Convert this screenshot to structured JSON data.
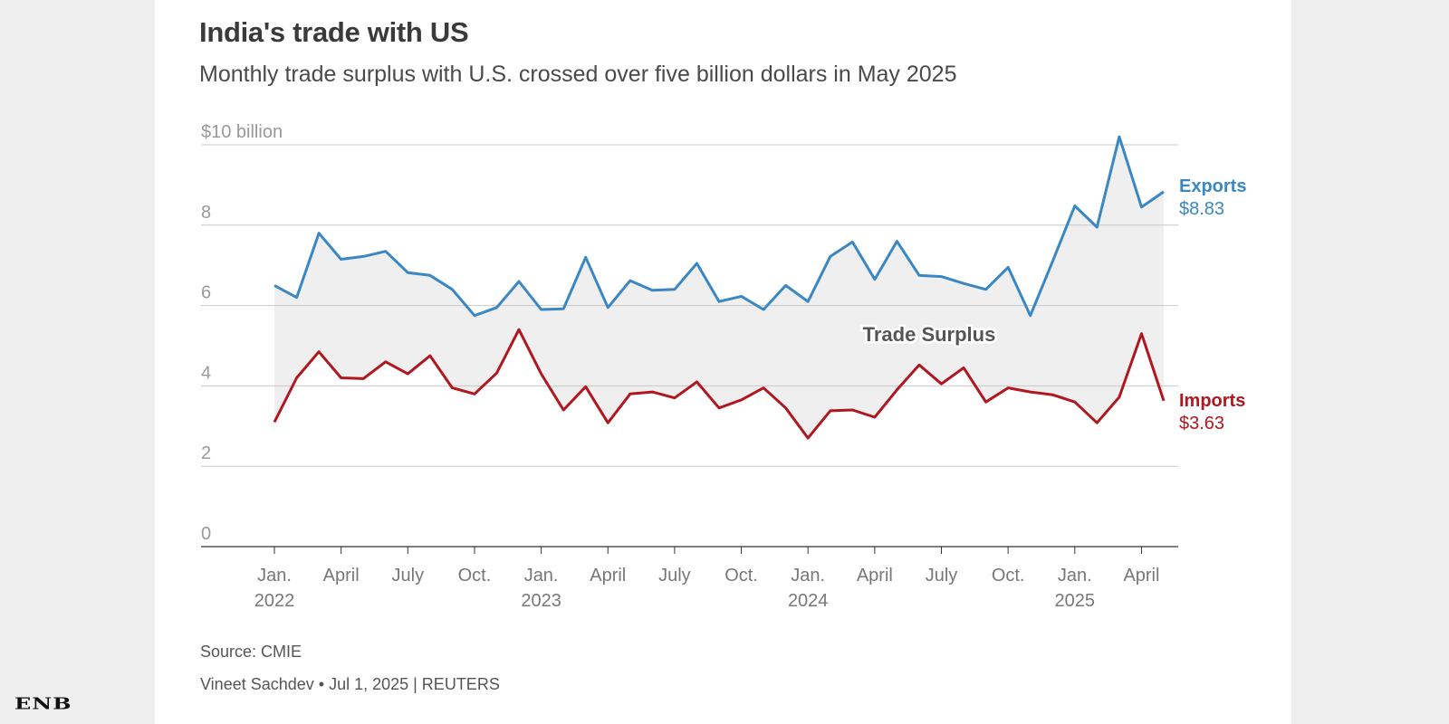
{
  "header": {
    "title": "India's trade with US",
    "subtitle": "Monthly trade surplus with U.S. crossed over five billion dollars in May 2025"
  },
  "footer": {
    "source": "Source: CMIE",
    "byline": "Vineet Sachdev • Jul 1, 2025 | REUTERS"
  },
  "brand": {
    "logo_text": "ENB"
  },
  "chart_data": {
    "type": "line",
    "title": "India's trade with US",
    "subtitle": "Monthly trade surplus with U.S. crossed over five billion dollars in May 2025",
    "ylabel": "$ billion",
    "ylim": [
      0,
      10
    ],
    "y_ticks": [
      {
        "value": 0,
        "label": "0"
      },
      {
        "value": 2,
        "label": "2"
      },
      {
        "value": 4,
        "label": "4"
      },
      {
        "value": 6,
        "label": "6"
      },
      {
        "value": 8,
        "label": "8"
      },
      {
        "value": 10,
        "label": "$10 billion"
      }
    ],
    "x_ticks": [
      {
        "index": 0,
        "line1": "Jan.",
        "line2": "2022"
      },
      {
        "index": 3,
        "line1": "April",
        "line2": ""
      },
      {
        "index": 6,
        "line1": "July",
        "line2": ""
      },
      {
        "index": 9,
        "line1": "Oct.",
        "line2": ""
      },
      {
        "index": 12,
        "line1": "Jan.",
        "line2": "2023"
      },
      {
        "index": 15,
        "line1": "April",
        "line2": ""
      },
      {
        "index": 18,
        "line1": "July",
        "line2": ""
      },
      {
        "index": 21,
        "line1": "Oct.",
        "line2": ""
      },
      {
        "index": 24,
        "line1": "Jan.",
        "line2": "2024"
      },
      {
        "index": 27,
        "line1": "April",
        "line2": ""
      },
      {
        "index": 30,
        "line1": "July",
        "line2": ""
      },
      {
        "index": 33,
        "line1": "Oct.",
        "line2": ""
      },
      {
        "index": 36,
        "line1": "Jan.",
        "line2": "2025"
      },
      {
        "index": 39,
        "line1": "April",
        "line2": ""
      }
    ],
    "x": [
      "Jan 2022",
      "Feb 2022",
      "Mar 2022",
      "Apr 2022",
      "May 2022",
      "Jun 2022",
      "Jul 2022",
      "Aug 2022",
      "Sep 2022",
      "Oct 2022",
      "Nov 2022",
      "Dec 2022",
      "Jan 2023",
      "Feb 2023",
      "Mar 2023",
      "Apr 2023",
      "May 2023",
      "Jun 2023",
      "Jul 2023",
      "Aug 2023",
      "Sep 2023",
      "Oct 2023",
      "Nov 2023",
      "Dec 2023",
      "Jan 2024",
      "Feb 2024",
      "Mar 2024",
      "Apr 2024",
      "May 2024",
      "Jun 2024",
      "Jul 2024",
      "Aug 2024",
      "Sep 2024",
      "Oct 2024",
      "Nov 2024",
      "Dec 2024",
      "Jan 2025",
      "Feb 2025",
      "Mar 2025",
      "Apr 2025",
      "May 2025"
    ],
    "series": [
      {
        "name": "Exports",
        "color": "#3a87c3",
        "label_value": "$8.83",
        "values": [
          6.5,
          6.2,
          7.8,
          7.15,
          7.22,
          7.35,
          6.82,
          6.75,
          6.4,
          5.75,
          5.95,
          6.6,
          5.9,
          5.92,
          7.2,
          5.95,
          6.62,
          6.38,
          6.4,
          7.05,
          6.1,
          6.23,
          5.9,
          6.5,
          6.1,
          7.22,
          7.58,
          6.65,
          7.6,
          6.75,
          6.72,
          6.55,
          6.4,
          6.95,
          5.75,
          7.1,
          8.48,
          7.95,
          10.2,
          8.45,
          8.83
        ]
      },
      {
        "name": "Imports",
        "color": "#b0171f",
        "label_value": "$3.63",
        "values": [
          3.1,
          4.2,
          4.85,
          4.2,
          4.18,
          4.6,
          4.3,
          4.75,
          3.95,
          3.8,
          4.32,
          5.4,
          4.3,
          3.4,
          3.98,
          3.08,
          3.8,
          3.85,
          3.7,
          4.1,
          3.45,
          3.65,
          3.95,
          3.45,
          2.7,
          3.38,
          3.4,
          3.22,
          3.9,
          4.52,
          4.05,
          4.45,
          3.6,
          3.95,
          3.85,
          3.78,
          3.6,
          3.08,
          3.72,
          5.3,
          3.63
        ]
      }
    ],
    "annotations": [
      {
        "text": "Trade Surplus"
      }
    ],
    "fill_color": "#efefef",
    "grid": true
  }
}
